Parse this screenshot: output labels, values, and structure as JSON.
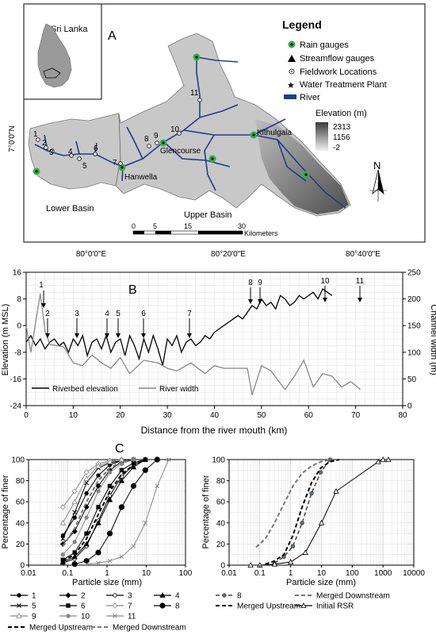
{
  "panel_a": {
    "label": "A",
    "inset_title": "Sri Lanka",
    "legend": {
      "title": "Legend",
      "items": [
        "Rain gauges",
        "Streamflow gauges",
        "Fieldwork Locations",
        "Water Treatment Plant",
        "River"
      ],
      "elevation_title": "Elevation (m)",
      "elevation_values": [
        "2313",
        "1156",
        "-2"
      ]
    },
    "place_labels": [
      "Glencourse",
      "Kithulgala",
      "Hanwella",
      "Lower Basin",
      "Upper Basin"
    ],
    "site_numbers": [
      "1",
      "2",
      "3",
      "4",
      "5",
      "6",
      "7",
      "8",
      "9",
      "10",
      "11"
    ],
    "lat_label": "7°0'0\"N",
    "lon_labels": [
      "80°0'0\"E",
      "80°20'0\"E",
      "80°40'0\"E"
    ],
    "scale_ticks": [
      "0",
      "5",
      "15",
      "30"
    ],
    "scale_unit": "Kilometers",
    "north": "N",
    "colors": {
      "river": "#1f3d8c",
      "basin": "#c8c8c8",
      "gauge": "#2db34a"
    }
  },
  "panel_b": {
    "label": "B",
    "site_labels": [
      "1",
      "2",
      "3",
      "4",
      "5",
      "6",
      "7",
      "8",
      "9",
      "10",
      "11"
    ],
    "legend": [
      "Riverbed elevation",
      "River width"
    ]
  },
  "panel_c": {
    "label": "C",
    "legend_left": [
      "1",
      "2",
      "3",
      "4",
      "5",
      "6",
      "7",
      "8",
      "9",
      "10",
      "11",
      "Merged Upstream",
      "Merged Downstream"
    ],
    "legend_right": [
      "8",
      "Merged Downstream",
      "Merged Upstream",
      "Initial RSR"
    ]
  },
  "chart_data": [
    {
      "type": "line",
      "xlabel": "Distance from the river mouth (km)",
      "ylabel": "Elevation (m MSL)",
      "y2label": "Channel width (m)",
      "xlim": [
        0,
        80
      ],
      "ylim": [
        -24,
        16
      ],
      "y2lim": [
        0,
        250
      ],
      "xticks": [
        "0",
        "10",
        "20",
        "30",
        "40",
        "50",
        "60",
        "70",
        "80"
      ],
      "yticks": [
        "-24",
        "-16",
        "-8",
        "0",
        "8",
        "16"
      ],
      "y2ticks": [
        "0",
        "50",
        "100",
        "150",
        "200",
        "250"
      ],
      "series": [
        {
          "name": "Riverbed elevation",
          "axis": "left",
          "x": [
            0,
            1,
            2,
            3,
            4,
            5,
            6,
            7,
            8,
            9,
            10,
            11,
            12,
            13,
            14,
            15,
            16,
            17,
            18,
            19,
            20,
            21,
            22,
            23,
            24,
            25,
            26,
            27,
            28,
            29,
            30,
            31,
            32,
            33,
            34,
            35,
            36,
            37,
            38,
            39,
            40,
            41,
            42,
            43,
            44,
            45,
            46,
            47,
            48,
            49,
            50,
            51,
            52,
            53,
            54,
            55,
            56,
            57,
            58,
            59,
            60,
            61,
            62,
            63,
            64,
            65
          ],
          "y": [
            -5,
            -3,
            -6,
            -4,
            -7,
            -5,
            -4,
            -6,
            -5,
            -8,
            -4,
            -6,
            -3,
            -9,
            -5,
            -4,
            -7,
            -3,
            -8,
            -5,
            -4,
            -9,
            -3,
            -6,
            -10,
            -4,
            -8,
            -3,
            -7,
            -12,
            -4,
            -6,
            -3,
            -8,
            -5,
            -4,
            -6,
            -5,
            -3,
            -4,
            -2,
            -1,
            0,
            1,
            2,
            3,
            2,
            4,
            6,
            5,
            8,
            6,
            7,
            5,
            9,
            8,
            6,
            7,
            9,
            8,
            9,
            10,
            8,
            11,
            10,
            9
          ]
        },
        {
          "name": "River width",
          "axis": "right",
          "x": [
            0,
            1,
            3,
            4,
            5,
            8,
            10,
            12,
            14,
            16,
            18,
            20,
            22,
            25,
            28,
            30,
            32,
            35,
            38,
            40,
            42,
            45,
            47,
            48,
            50,
            52,
            55,
            57,
            59,
            61,
            63,
            65,
            67,
            69,
            71
          ],
          "y": [
            150,
            100,
            210,
            140,
            115,
            110,
            80,
            75,
            95,
            80,
            70,
            90,
            60,
            85,
            80,
            70,
            65,
            80,
            60,
            75,
            70,
            70,
            70,
            20,
            75,
            65,
            30,
            55,
            85,
            35,
            60,
            55,
            35,
            45,
            30
          ]
        }
      ]
    },
    {
      "type": "line",
      "xlabel": "Particle size (mm)",
      "ylabel": "Percentage of finer",
      "xscale": "log",
      "xlim": [
        0.01,
        100
      ],
      "ylim": [
        0,
        100
      ],
      "xticks": [
        "0.01",
        "0.1",
        "1",
        "10",
        "100"
      ],
      "yticks": [
        "0",
        "20",
        "40",
        "60",
        "80",
        "100"
      ],
      "series": [
        {
          "name": "1",
          "x": [
            0.075,
            0.15,
            0.3,
            0.6,
            1.18,
            2.36,
            4.75
          ],
          "y": [
            28,
            45,
            68,
            85,
            95,
            99,
            100
          ]
        },
        {
          "name": "2",
          "x": [
            0.075,
            0.15,
            0.3,
            0.6,
            1.18,
            2.36,
            4.75
          ],
          "y": [
            20,
            32,
            55,
            75,
            90,
            98,
            100
          ]
        },
        {
          "name": "3",
          "x": [
            0.075,
            0.15,
            0.3,
            0.6,
            1.18,
            2.36,
            4.75,
            9.5
          ],
          "y": [
            2,
            6,
            18,
            42,
            66,
            84,
            95,
            100
          ]
        },
        {
          "name": "4",
          "x": [
            0.075,
            0.15,
            0.3,
            0.6,
            1.18,
            2.36,
            4.75,
            9.5
          ],
          "y": [
            3,
            8,
            20,
            40,
            62,
            80,
            93,
            100
          ]
        },
        {
          "name": "5",
          "x": [
            0.075,
            0.15,
            0.3,
            0.6,
            1.18,
            2.36,
            4.75
          ],
          "y": [
            25,
            50,
            78,
            92,
            97,
            99,
            100
          ]
        },
        {
          "name": "6",
          "x": [
            0.075,
            0.15,
            0.3,
            0.6,
            1.18,
            2.36,
            4.75,
            9.5
          ],
          "y": [
            5,
            12,
            30,
            55,
            75,
            90,
            97,
            100
          ]
        },
        {
          "name": "7",
          "x": [
            0.075,
            0.15,
            0.3,
            0.6,
            1.18,
            2.36
          ],
          "y": [
            55,
            70,
            88,
            96,
            99,
            100
          ]
        },
        {
          "name": "8",
          "x": [
            0.15,
            0.3,
            0.6,
            1.18,
            2.36,
            4.75,
            9.5,
            19
          ],
          "y": [
            1,
            4,
            12,
            30,
            55,
            75,
            90,
            100
          ]
        },
        {
          "name": "9",
          "x": [
            0.075,
            0.15,
            0.3,
            0.6,
            1.18,
            2.36
          ],
          "y": [
            40,
            60,
            82,
            94,
            98,
            100
          ]
        },
        {
          "name": "10",
          "x": [
            0.075,
            0.15,
            0.3,
            0.6,
            1.18,
            2.36,
            4.75
          ],
          "y": [
            10,
            22,
            45,
            70,
            88,
            96,
            100
          ]
        },
        {
          "name": "11",
          "x": [
            0.3,
            0.6,
            1.18,
            2.36,
            4.75,
            9.5,
            19,
            37.5
          ],
          "y": [
            1,
            2,
            4,
            8,
            18,
            40,
            75,
            100
          ]
        },
        {
          "name": "Merged Upstream",
          "x": [
            0.075,
            0.15,
            0.3,
            0.6,
            1.18,
            2.36,
            4.75,
            9.5
          ],
          "y": [
            4,
            10,
            25,
            48,
            70,
            86,
            95,
            100
          ]
        },
        {
          "name": "Merged Downstream",
          "x": [
            0.075,
            0.15,
            0.3,
            0.6,
            1.18,
            2.36,
            4.75
          ],
          "y": [
            18,
            35,
            60,
            80,
            92,
            98,
            100
          ]
        }
      ]
    },
    {
      "type": "line",
      "xlabel": "Particle size (mm)",
      "ylabel": "Percentage of finer",
      "xscale": "log",
      "xlim": [
        0.01,
        10000
      ],
      "ylim": [
        0,
        100
      ],
      "xticks": [
        "0.01",
        "0.1",
        "1",
        "10",
        "100",
        "1000",
        "10000"
      ],
      "yticks": [
        "0",
        "20",
        "40",
        "60",
        "80",
        "100"
      ],
      "series": [
        {
          "name": "8",
          "x": [
            0.3,
            0.6,
            1.18,
            2.36,
            4.75,
            9.5,
            19
          ],
          "y": [
            2,
            8,
            18,
            40,
            68,
            88,
            100
          ]
        },
        {
          "name": "Merged Downstream",
          "x": [
            0.075,
            0.15,
            0.3,
            0.6,
            1.18,
            2.36,
            4.75,
            9.5,
            19
          ],
          "y": [
            17,
            25,
            40,
            58,
            75,
            87,
            94,
            98,
            100
          ]
        },
        {
          "name": "Merged Upstream",
          "x": [
            0.15,
            0.3,
            0.6,
            1.18,
            2.36,
            4.75,
            9.5,
            19,
            37.5
          ],
          "y": [
            1,
            4,
            10,
            28,
            55,
            78,
            92,
            98,
            100
          ]
        },
        {
          "name": "Initial RSR",
          "x": [
            0.05,
            0.1,
            0.3,
            1,
            3,
            10,
            30,
            700,
            1000,
            1500
          ],
          "y": [
            0,
            0,
            1,
            3,
            12,
            40,
            70,
            98,
            100,
            100
          ]
        }
      ]
    }
  ]
}
